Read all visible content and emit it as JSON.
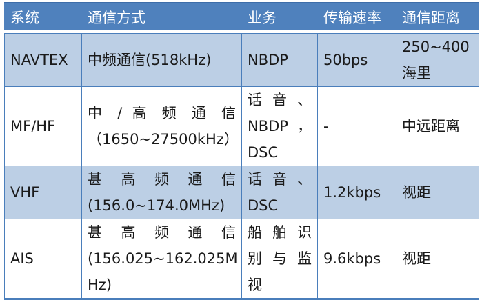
{
  "colors": {
    "header_bg": "#4F81BD",
    "header_border_top": "#3D6DA9",
    "header_text": "#FFFFFF",
    "row_light_bg": "#BCCFE5",
    "row_white_bg": "#FFFFFF",
    "grid_border": "#4A7EBB",
    "body_text": "#1A1A1A"
  },
  "table": {
    "headers": [
      "系统",
      "通信方式",
      "业务",
      "传输速率",
      "通信距离"
    ],
    "rows": [
      {
        "cells": [
          {
            "lines": [
              {
                "t": "NAVTEX"
              }
            ]
          },
          {
            "lines": [
              {
                "t": "中频通信(518kHz)"
              }
            ]
          },
          {
            "lines": [
              {
                "t": "NBDP"
              }
            ]
          },
          {
            "lines": [
              {
                "t": "50bps"
              }
            ]
          },
          {
            "lines": [
              {
                "t": "250~400"
              },
              {
                "t": "海里"
              }
            ]
          }
        ]
      },
      {
        "cells": [
          {
            "lines": [
              {
                "t": "MF/HF"
              }
            ]
          },
          {
            "lines": [
              {
                "t": "中 / 高 频 通 信",
                "spread": true
              },
              {
                "t": "（1650~27500kHz）"
              }
            ]
          },
          {
            "lines": [
              {
                "t": "话 音 、",
                "spread": true
              },
              {
                "t": "NBDP ，",
                "spread": true
              },
              {
                "t": "DSC"
              }
            ]
          },
          {
            "lines": [
              {
                "t": "-"
              }
            ]
          },
          {
            "lines": [
              {
                "t": "中远距离"
              }
            ]
          }
        ]
      },
      {
        "cells": [
          {
            "lines": [
              {
                "t": "VHF"
              }
            ]
          },
          {
            "lines": [
              {
                "t": "甚 高 频 通 信",
                "spread": true
              },
              {
                "t": "(156.0~174.0MHz)"
              }
            ]
          },
          {
            "lines": [
              {
                "t": "话 音 、",
                "spread": true
              },
              {
                "t": "DSC"
              }
            ]
          },
          {
            "lines": [
              {
                "t": "1.2kbps"
              }
            ]
          },
          {
            "lines": [
              {
                "t": "视距"
              }
            ]
          }
        ]
      },
      {
        "cells": [
          {
            "lines": [
              {
                "t": "AIS"
              }
            ]
          },
          {
            "lines": [
              {
                "t": "甚 高 频 通 信",
                "spread": true
              },
              {
                "t": "(156.025~162.025M"
              },
              {
                "t": "Hz)"
              }
            ]
          },
          {
            "lines": [
              {
                "t": "船 舶 识",
                "spread": true
              },
              {
                "t": "别 与 监",
                "spread": true
              },
              {
                "t": "视"
              }
            ]
          },
          {
            "lines": [
              {
                "t": "9.6kbps"
              }
            ]
          },
          {
            "lines": [
              {
                "t": "视距"
              }
            ]
          }
        ]
      }
    ]
  }
}
